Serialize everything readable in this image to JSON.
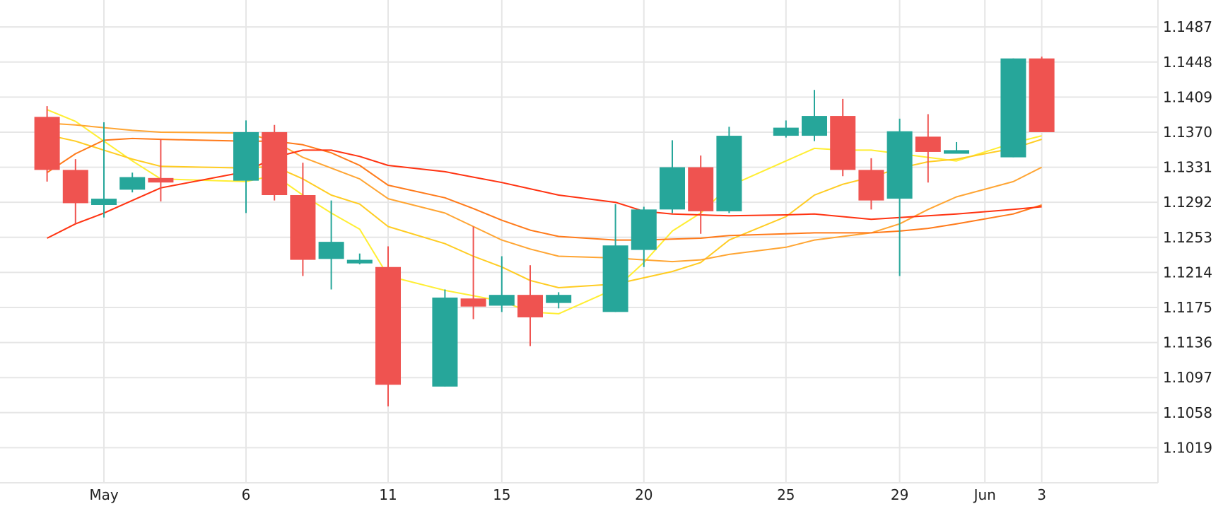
{
  "chart_data": {
    "type": "candlestick",
    "title": "",
    "xlabel": "",
    "ylabel": "",
    "ylim": [
      1.098,
      1.1517
    ],
    "y_ticks": [
      "1.1487",
      "1.1448",
      "1.1409",
      "1.1370",
      "1.1331",
      "1.1292",
      "1.1253",
      "1.1214",
      "1.1175",
      "1.1136",
      "1.1097",
      "1.1058",
      "1.1019"
    ],
    "x_ticks": [
      {
        "label": "May",
        "date": "2019-05-01"
      },
      {
        "label": "6",
        "date": "2019-05-06"
      },
      {
        "label": "11",
        "date": "2019-05-11"
      },
      {
        "label": "15",
        "date": "2019-05-15"
      },
      {
        "label": "20",
        "date": "2019-05-20"
      },
      {
        "label": "25",
        "date": "2019-05-25"
      },
      {
        "label": "29",
        "date": "2019-05-29"
      },
      {
        "label": "Jun",
        "date": "2019-06-01"
      },
      {
        "label": "3",
        "date": "2019-06-03"
      }
    ],
    "up_color": "#26a69a",
    "down_color": "#ef5350",
    "grid": true,
    "candles": [
      {
        "date": "2019-04-29",
        "open": 1.1387,
        "high": 1.1399,
        "low": 1.1315,
        "close": 1.1328
      },
      {
        "date": "2019-04-30",
        "open": 1.1328,
        "high": 1.134,
        "low": 1.1268,
        "close": 1.1291
      },
      {
        "date": "2019-05-01",
        "open": 1.1289,
        "high": 1.1381,
        "low": 1.1275,
        "close": 1.1296
      },
      {
        "date": "2019-05-02",
        "open": 1.1306,
        "high": 1.1325,
        "low": 1.1303,
        "close": 1.132
      },
      {
        "date": "2019-05-03",
        "open": 1.1319,
        "high": 1.1362,
        "low": 1.1293,
        "close": 1.1314
      },
      {
        "date": "2019-05-06",
        "open": 1.1316,
        "high": 1.1383,
        "low": 1.128,
        "close": 1.137
      },
      {
        "date": "2019-05-07",
        "open": 1.137,
        "high": 1.1378,
        "low": 1.1294,
        "close": 1.13
      },
      {
        "date": "2019-05-08",
        "open": 1.13,
        "high": 1.1336,
        "low": 1.121,
        "close": 1.1228
      },
      {
        "date": "2019-05-09",
        "open": 1.1229,
        "high": 1.1294,
        "low": 1.1195,
        "close": 1.1248
      },
      {
        "date": "2019-05-10",
        "open": 1.1224,
        "high": 1.1235,
        "low": 1.1223,
        "close": 1.1228
      },
      {
        "date": "2019-05-11",
        "open": 1.122,
        "high": 1.1243,
        "low": 1.1065,
        "close": 1.1089
      },
      {
        "date": "2019-05-13",
        "open": 1.1087,
        "high": 1.1195,
        "low": 1.1087,
        "close": 1.1186
      },
      {
        "date": "2019-05-14",
        "open": 1.1185,
        "high": 1.1265,
        "low": 1.1162,
        "close": 1.1176
      },
      {
        "date": "2019-05-15",
        "open": 1.1177,
        "high": 1.1232,
        "low": 1.117,
        "close": 1.1189
      },
      {
        "date": "2019-05-16",
        "open": 1.1189,
        "high": 1.1222,
        "low": 1.1132,
        "close": 1.1164
      },
      {
        "date": "2019-05-17",
        "open": 1.118,
        "high": 1.1192,
        "low": 1.1174,
        "close": 1.1189
      },
      {
        "date": "2019-05-19",
        "open": 1.117,
        "high": 1.129,
        "low": 1.117,
        "close": 1.1244
      },
      {
        "date": "2019-05-20",
        "open": 1.1239,
        "high": 1.1287,
        "low": 1.122,
        "close": 1.1284
      },
      {
        "date": "2019-05-21",
        "open": 1.1284,
        "high": 1.1361,
        "low": 1.128,
        "close": 1.1331
      },
      {
        "date": "2019-05-22",
        "open": 1.1331,
        "high": 1.1344,
        "low": 1.1257,
        "close": 1.1282
      },
      {
        "date": "2019-05-23",
        "open": 1.1282,
        "high": 1.1376,
        "low": 1.128,
        "close": 1.1366
      },
      {
        "date": "2019-05-25",
        "open": 1.1366,
        "high": 1.1383,
        "low": 1.1364,
        "close": 1.1375
      },
      {
        "date": "2019-05-26",
        "open": 1.1366,
        "high": 1.1417,
        "low": 1.136,
        "close": 1.1388
      },
      {
        "date": "2019-05-27",
        "open": 1.1388,
        "high": 1.1407,
        "low": 1.1321,
        "close": 1.1328
      },
      {
        "date": "2019-05-28",
        "open": 1.1328,
        "high": 1.1341,
        "low": 1.1284,
        "close": 1.1294
      },
      {
        "date": "2019-05-29",
        "open": 1.1296,
        "high": 1.1385,
        "low": 1.121,
        "close": 1.1371
      },
      {
        "date": "2019-05-30",
        "open": 1.1365,
        "high": 1.139,
        "low": 1.1314,
        "close": 1.1348
      },
      {
        "date": "2019-05-31",
        "open": 1.1346,
        "high": 1.1359,
        "low": 1.1346,
        "close": 1.135
      },
      {
        "date": "2019-06-02",
        "open": 1.1342,
        "high": 1.1452,
        "low": 1.1342,
        "close": 1.1452
      },
      {
        "date": "2019-06-03",
        "open": 1.1452,
        "high": 1.1454,
        "low": 1.137,
        "close": 1.137
      }
    ],
    "series": [
      {
        "color": "#ffee33",
        "values": [
          1.1395,
          1.1382,
          1.136,
          1.1338,
          1.1318,
          1.1315,
          1.1322,
          1.13,
          1.128,
          1.1262,
          1.121,
          1.1194,
          1.1188,
          1.1182,
          1.117,
          1.1168,
          1.1196,
          1.1225,
          1.126,
          1.128,
          1.131,
          1.1338,
          1.1352,
          1.135,
          1.135,
          1.1346,
          1.1342,
          1.1338,
          1.1358,
          1.1366
        ]
      },
      {
        "color": "#ffcc22",
        "values": [
          1.1367,
          1.136,
          1.135,
          1.134,
          1.1332,
          1.133,
          1.1332,
          1.1318,
          1.13,
          1.129,
          1.1265,
          1.1246,
          1.1232,
          1.122,
          1.1205,
          1.1197,
          1.1201,
          1.1208,
          1.1215,
          1.1225,
          1.125,
          1.1276,
          1.13,
          1.1312,
          1.132,
          1.133,
          1.1337,
          1.134,
          1.1352,
          1.1362
        ]
      },
      {
        "color": "#ffa533",
        "values": [
          1.138,
          1.1378,
          1.1375,
          1.1372,
          1.137,
          1.1369,
          1.136,
          1.1342,
          1.133,
          1.1318,
          1.1296,
          1.128,
          1.1265,
          1.125,
          1.124,
          1.1232,
          1.123,
          1.1228,
          1.1226,
          1.1228,
          1.1234,
          1.1242,
          1.125,
          1.1254,
          1.1258,
          1.1268,
          1.1284,
          1.1298,
          1.1315,
          1.1331
        ]
      },
      {
        "color": "#ff7a1a",
        "values": [
          1.1325,
          1.1346,
          1.1361,
          1.1363,
          1.1362,
          1.136,
          1.136,
          1.1356,
          1.1347,
          1.1333,
          1.1311,
          1.1297,
          1.1285,
          1.1272,
          1.1261,
          1.1254,
          1.125,
          1.125,
          1.1251,
          1.1252,
          1.1255,
          1.1257,
          1.1258,
          1.1258,
          1.1258,
          1.126,
          1.1263,
          1.1268,
          1.1279,
          1.1289
        ]
      },
      {
        "color": "#ff3311",
        "values": [
          1.1252,
          1.1268,
          1.128,
          1.1294,
          1.1308,
          1.1326,
          1.1342,
          1.135,
          1.135,
          1.1343,
          1.1333,
          1.1326,
          1.132,
          1.1314,
          1.1307,
          1.13,
          1.1292,
          1.1282,
          1.1279,
          1.1278,
          1.1277,
          1.1278,
          1.1279,
          1.1276,
          1.1273,
          1.1275,
          1.1277,
          1.1279,
          1.1284,
          1.1287
        ]
      }
    ]
  }
}
